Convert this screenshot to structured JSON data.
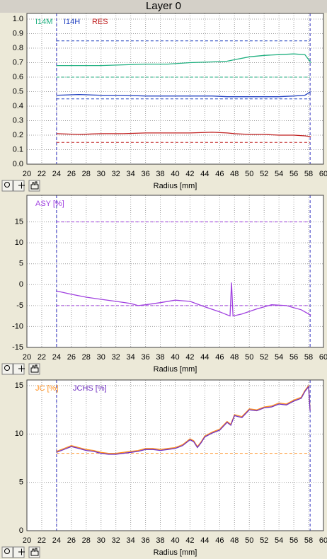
{
  "title": "Layer 0",
  "chart_data": [
    {
      "type": "line",
      "x_label": "Radius [mm]",
      "xlim": [
        20,
        60
      ],
      "xticks": [
        20,
        22,
        24,
        26,
        28,
        30,
        32,
        34,
        36,
        38,
        40,
        42,
        44,
        46,
        48,
        50,
        52,
        54,
        56,
        58,
        60
      ],
      "ylim": [
        0,
        1
      ],
      "yticks": [
        {
          "value": 0,
          "label": "0.0"
        },
        0.1,
        0.2,
        0.3,
        0.4,
        0.5,
        0.6,
        0.7,
        0.8,
        0.9,
        {
          "value": 1,
          "label": "1.0"
        }
      ],
      "grid": true,
      "legend": "top-left",
      "vlines": [
        24,
        58.2
      ],
      "hlines": [
        {
          "y": 0.85,
          "color": "#2040c0"
        },
        {
          "y": 0.6,
          "color": "#20b080"
        },
        {
          "y": 0.45,
          "color": "#2040c0"
        },
        {
          "y": 0.15,
          "color": "#c02020"
        }
      ],
      "x": [
        24,
        27,
        30,
        33,
        36,
        39,
        42,
        45,
        47,
        48,
        50,
        52,
        54,
        56,
        57.5,
        58.3
      ],
      "series": [
        {
          "name": "I14M",
          "color": "#20b080",
          "values": [
            0.68,
            0.68,
            0.68,
            0.685,
            0.69,
            0.69,
            0.7,
            0.705,
            0.71,
            0.72,
            0.74,
            0.75,
            0.755,
            0.76,
            0.755,
            0.7
          ]
        },
        {
          "name": "I14H",
          "color": "#2040c0",
          "values": [
            0.475,
            0.48,
            0.475,
            0.475,
            0.47,
            0.47,
            0.47,
            0.47,
            0.465,
            0.465,
            0.465,
            0.465,
            0.465,
            0.47,
            0.475,
            0.5
          ]
        },
        {
          "name": "RES",
          "color": "#c02020",
          "values": [
            0.21,
            0.205,
            0.21,
            0.21,
            0.215,
            0.215,
            0.215,
            0.22,
            0.215,
            0.21,
            0.205,
            0.205,
            0.2,
            0.2,
            0.195,
            0.19
          ]
        }
      ]
    },
    {
      "type": "line",
      "x_label": "Radius [mm]",
      "xlim": [
        20,
        60
      ],
      "xticks": [
        20,
        22,
        24,
        26,
        28,
        30,
        32,
        34,
        36,
        38,
        40,
        42,
        44,
        46,
        48,
        50,
        52,
        54,
        56,
        58,
        60
      ],
      "ylim": [
        -15,
        20
      ],
      "yticks": [
        -15,
        -10,
        -5,
        0,
        5,
        10,
        15
      ],
      "grid": true,
      "legend": "top-left",
      "vlines": [
        24,
        58.2
      ],
      "hlines": [
        {
          "y": 15,
          "color": "#a040e0"
        },
        {
          "y": -5,
          "color": "#a040e0"
        }
      ],
      "x": [
        24,
        26,
        28,
        30,
        32,
        34,
        35,
        36,
        38,
        40,
        42,
        44,
        46,
        47.4,
        47.6,
        47.8,
        49,
        51,
        53,
        55,
        57,
        58.3
      ],
      "series": [
        {
          "name": "ASY [%]",
          "color": "#a040e0",
          "values": [
            -1.5,
            -2.3,
            -3,
            -3.5,
            -4,
            -4.5,
            -5,
            -4.8,
            -4.3,
            -3.7,
            -4,
            -5.3,
            -6.5,
            -7.5,
            0.5,
            -7.5,
            -7,
            -5.8,
            -4.8,
            -5,
            -6,
            -7.3
          ]
        }
      ]
    },
    {
      "type": "line",
      "x_label": "Radius [mm]",
      "xlim": [
        20,
        60
      ],
      "xticks": [
        20,
        22,
        24,
        26,
        28,
        30,
        32,
        34,
        36,
        38,
        40,
        42,
        44,
        46,
        48,
        50,
        52,
        54,
        56,
        58,
        60
      ],
      "ylim": [
        0,
        15
      ],
      "yticks": [
        0,
        5,
        10,
        15
      ],
      "grid": true,
      "legend": "top-left",
      "vlines": [
        24,
        58.2
      ],
      "hlines": [
        {
          "y": 8,
          "color": "#ff9020"
        }
      ],
      "x": [
        24,
        25,
        26,
        27,
        28,
        29,
        30,
        31,
        32,
        33,
        34,
        35,
        36,
        37,
        38,
        39,
        40,
        41,
        42,
        42.5,
        43,
        43.5,
        44,
        45,
        46,
        47,
        47.5,
        48,
        49,
        50,
        51,
        52,
        53,
        54,
        55,
        56,
        57,
        57.5,
        58,
        58.2
      ],
      "series": [
        {
          "name": "JC [%]",
          "color": "#ff9020",
          "values": [
            8.2,
            8.5,
            8.8,
            8.6,
            8.4,
            8.3,
            8.1,
            8.0,
            8.0,
            8.1,
            8.2,
            8.3,
            8.5,
            8.5,
            8.4,
            8.5,
            8.6,
            8.9,
            9.5,
            9.3,
            8.7,
            9.2,
            9.8,
            10.2,
            10.5,
            11.3,
            11.0,
            12.0,
            11.8,
            12.6,
            12.5,
            12.8,
            12.9,
            13.2,
            13.1,
            13.5,
            13.8,
            14.5,
            15,
            12.5
          ]
        },
        {
          "name": "JCHS [%]",
          "color": "#7030c0",
          "values": [
            8.1,
            8.4,
            8.7,
            8.5,
            8.3,
            8.2,
            8.0,
            7.9,
            7.9,
            8.0,
            8.1,
            8.2,
            8.4,
            8.4,
            8.3,
            8.4,
            8.5,
            8.8,
            9.4,
            9.2,
            8.6,
            9.1,
            9.7,
            10.1,
            10.4,
            11.2,
            10.9,
            11.9,
            11.7,
            12.5,
            12.4,
            12.7,
            12.8,
            13.1,
            13.0,
            13.4,
            13.7,
            14.4,
            14.9,
            12.4
          ]
        }
      ]
    }
  ]
}
